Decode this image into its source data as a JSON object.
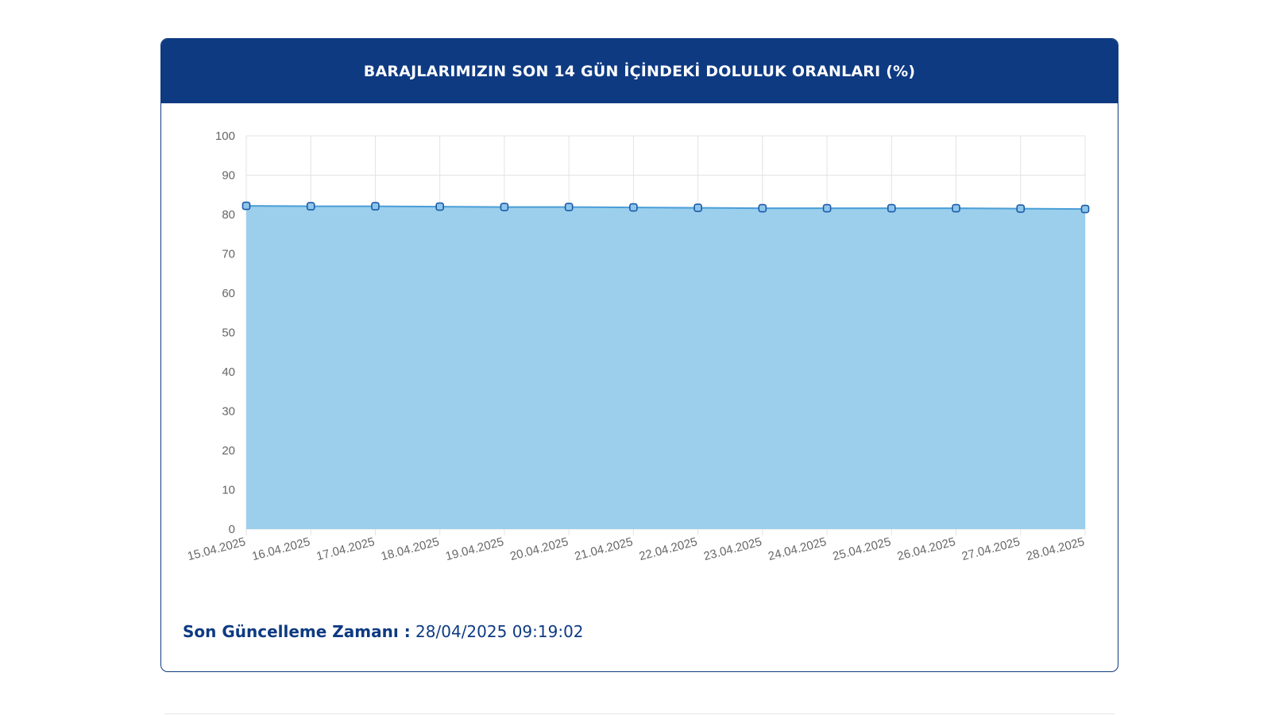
{
  "header": {
    "title": "BARAJLARIMIZIN SON 14 GÜN İÇİNDEKİ DOLULUK ORANLARI (%)"
  },
  "footer": {
    "label": "Son Güncelleme Zamanı :",
    "value": " 28/04/2025 09:19:02"
  },
  "colors": {
    "header_bg": "#0e3a82",
    "area_fill": "#9bcfeb",
    "line": "#4a9ed8",
    "marker_stroke": "#1c5aa8",
    "marker_fill": "#8ec6ea",
    "grid": "#e3e3e3",
    "tick_text": "#666666"
  },
  "chart_data": {
    "type": "area",
    "categories": [
      "15.04.2025",
      "16.04.2025",
      "17.04.2025",
      "18.04.2025",
      "19.04.2025",
      "20.04.2025",
      "21.04.2025",
      "22.04.2025",
      "23.04.2025",
      "24.04.2025",
      "25.04.2025",
      "26.04.2025",
      "27.04.2025",
      "28.04.2025"
    ],
    "series": [
      {
        "values": [
          82.2,
          82.1,
          82.1,
          82.0,
          81.9,
          81.9,
          81.8,
          81.7,
          81.6,
          81.6,
          81.6,
          81.6,
          81.5,
          81.4
        ]
      }
    ],
    "ylim": [
      0,
      100
    ],
    "yticks": [
      0,
      10,
      20,
      30,
      40,
      50,
      60,
      70,
      80,
      90,
      100
    ],
    "grid": true,
    "legend": "none"
  }
}
